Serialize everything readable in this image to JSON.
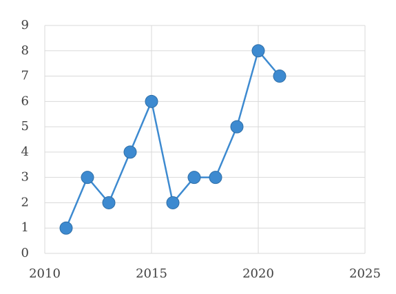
{
  "chart_data": {
    "type": "line",
    "x": [
      2011,
      2012,
      2013,
      2014,
      2015,
      2016,
      2017,
      2018,
      2019,
      2020,
      2021
    ],
    "values": [
      1,
      3,
      2,
      4,
      6,
      2,
      3,
      3,
      5,
      8,
      7
    ],
    "color": "#3d8ad0",
    "xlim": [
      2010,
      2025
    ],
    "xticks": [
      2010,
      2015,
      2020,
      2025
    ],
    "ylim": [
      0,
      9
    ],
    "yticks": [
      0,
      1,
      2,
      3,
      4,
      5,
      6,
      7,
      8,
      9
    ],
    "grid": true
  }
}
